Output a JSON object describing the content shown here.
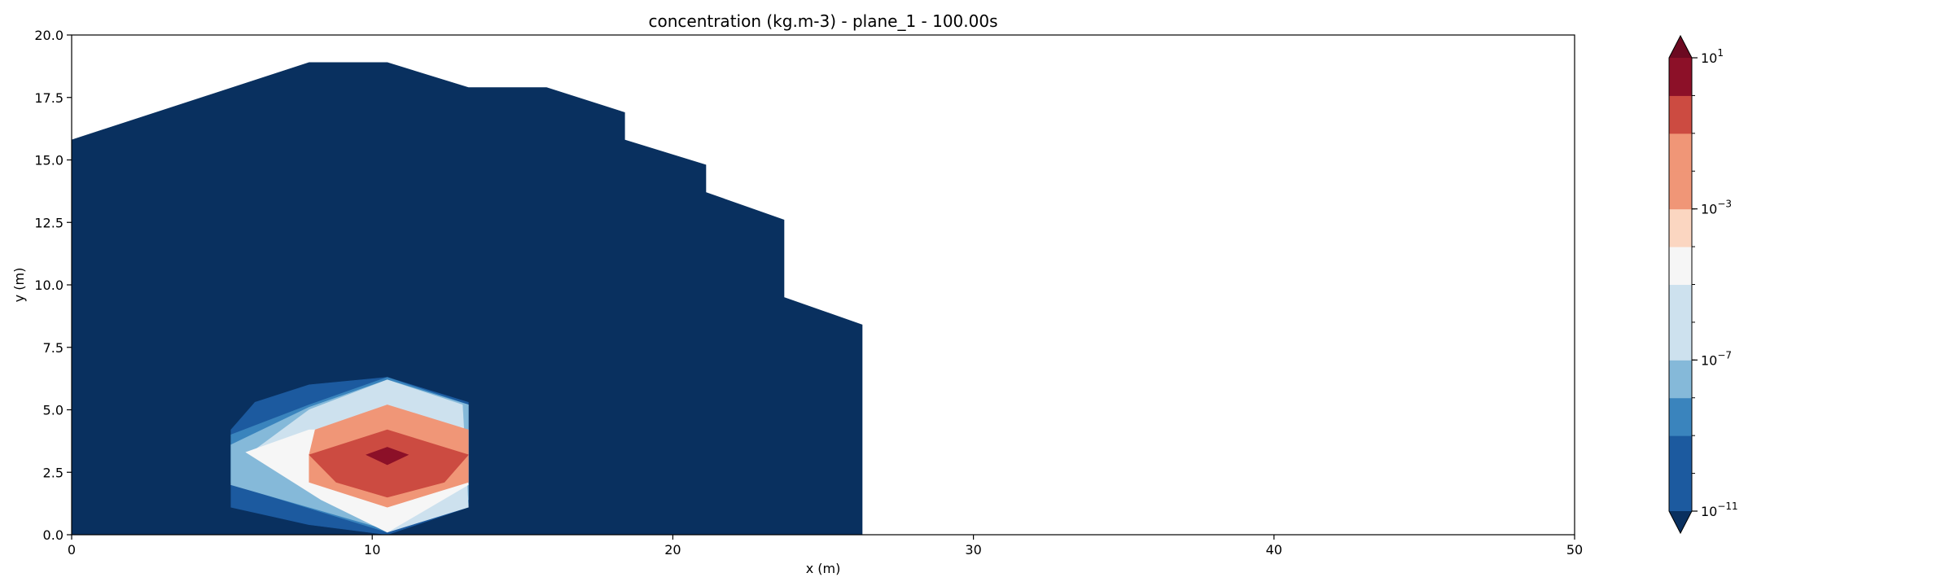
{
  "chart_data": {
    "type": "contour",
    "title": "concentration (kg.m-3) - plane_1 - 100.00s",
    "xlabel": "x (m)",
    "ylabel": "y (m)",
    "xlim": [
      0,
      50
    ],
    "ylim": [
      0,
      20
    ],
    "x_ticks": [
      "0",
      "10",
      "20",
      "30",
      "40",
      "50"
    ],
    "y_ticks": [
      "0.0",
      "2.5",
      "5.0",
      "7.5",
      "10.0",
      "12.5",
      "15.0",
      "17.5",
      "20.0"
    ],
    "colorbar": {
      "scale": "log",
      "extend": "both",
      "min_exponent": -11,
      "max_exponent": 1,
      "level_exponents": [
        -11,
        -10,
        -9,
        -8,
        -7,
        -6,
        -5,
        -4,
        -3,
        -2,
        -1,
        0,
        1
      ],
      "labeled_exponents": [
        1,
        -3,
        -7,
        -11
      ],
      "tick_labels": [
        "10",
        "10",
        "10",
        "10"
      ],
      "tick_label_exponents": [
        "1",
        "−3",
        "−7",
        "−11"
      ],
      "band_colors": [
        "#1c5a9f",
        "#3a84bd",
        "#85b9d9",
        "#cde1ee",
        "#f6f6f6",
        "#fbd6c1",
        "#f09677",
        "#cc4b41",
        "#8c1028"
      ],
      "under_color": "#09305f",
      "over_color": "#6c0921"
    },
    "regions": [
      {
        "level": "below 10^-11",
        "color": "#09305f",
        "x": [
          0,
          7.9,
          10.5,
          13.2,
          15.8,
          15.8,
          18.4,
          18.4,
          21.1,
          21.1,
          23.7,
          23.7,
          26.3,
          26.3,
          0
        ],
        "y": [
          15.8,
          18.9,
          18.9,
          17.9,
          17.9,
          17.9,
          16.9,
          15.8,
          14.8,
          13.7,
          12.6,
          9.5,
          8.4,
          0,
          0
        ]
      },
      {
        "level": "10^-11 – 10^-9",
        "color": "#1c5a9f",
        "x": [
          5.3,
          6.1,
          7.9,
          10.5,
          13.2,
          13.2,
          10.5,
          7.9,
          5.3
        ],
        "y": [
          4.2,
          5.3,
          6.0,
          6.3,
          5.3,
          1.1,
          0,
          0.4,
          1.1
        ]
      },
      {
        "level": "10^-9 – 10^-8",
        "color": "#3a84bd",
        "x": [
          5.3,
          7.9,
          10.5,
          13.2,
          13.2,
          10.5,
          5.9,
          5.3
        ],
        "y": [
          4.0,
          5.2,
          6.3,
          5.2,
          1.2,
          0.1,
          1.8,
          2.1
        ]
      },
      {
        "level": "10^-8 – 10^-7",
        "color": "#85b9d9",
        "x": [
          5.3,
          7.9,
          10.5,
          13.2,
          13.2,
          10.5,
          5.3
        ],
        "y": [
          3.6,
          5.1,
          6.2,
          5.2,
          1.4,
          0.2,
          2.0
        ]
      },
      {
        "level": "10^-7 – 10^-5",
        "color": "#cde1ee",
        "x": [
          6.1,
          7.9,
          10.5,
          13.0,
          13.2,
          10.5,
          7.9
        ],
        "y": [
          3.4,
          5.0,
          6.2,
          5.2,
          1.1,
          0.1,
          1.8
        ]
      },
      {
        "level": "10^-5 – 10^-4",
        "color": "#f6f6f6",
        "x": [
          5.8,
          7.9,
          13.0,
          13.2,
          10.5,
          8.3
        ],
        "y": [
          3.3,
          4.2,
          4.3,
          2.0,
          0.1,
          1.4
        ]
      },
      {
        "level": "10^-3 – 10^-2",
        "color": "#f09677",
        "x": [
          7.9,
          8.1,
          10.5,
          13.2,
          13.2,
          10.5,
          7.9
        ],
        "y": [
          3.2,
          4.2,
          5.2,
          4.2,
          2.1,
          1.1,
          2.1
        ]
      },
      {
        "level": "10^-2 – 10^0",
        "color": "#cc4b41",
        "x": [
          7.9,
          10.5,
          13.2,
          12.4,
          10.5,
          8.8
        ],
        "y": [
          3.2,
          4.2,
          3.2,
          2.1,
          1.5,
          2.1
        ]
      },
      {
        "level": "above 10^0",
        "color": "#8c1028",
        "x": [
          9.8,
          10.5,
          11.2,
          10.5
        ],
        "y": [
          3.2,
          3.5,
          3.2,
          2.8
        ]
      }
    ]
  }
}
